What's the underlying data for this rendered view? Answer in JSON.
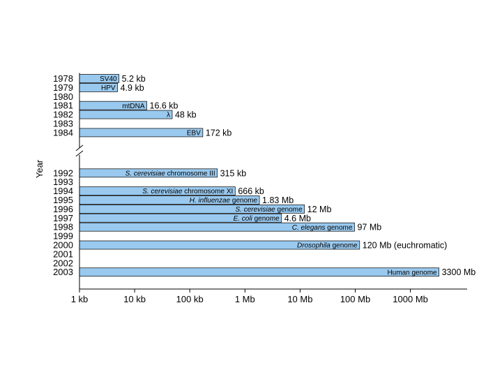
{
  "chart_data": {
    "type": "bar",
    "orientation": "horizontal",
    "scale": "log",
    "title": "",
    "ylabel": "Year",
    "xlabel": "",
    "bar_color": "#99c9ef",
    "x_ticks": [
      {
        "label": "1 kb",
        "value": 1
      },
      {
        "label": "10 kb",
        "value": 10
      },
      {
        "label": "100 kb",
        "value": 100
      },
      {
        "label": "1 Mb",
        "value": 1000
      },
      {
        "label": "10 Mb",
        "value": 10000
      },
      {
        "label": "100 Mb",
        "value": 100000
      },
      {
        "label": "1000 Mb",
        "value": 1000000
      }
    ],
    "axis_break_after": "1984",
    "rows": [
      {
        "year": "1978",
        "name": "SV40",
        "value_kb": 5.2,
        "value_label": "5.2 kb"
      },
      {
        "year": "1979",
        "name": "HPV",
        "value_kb": 4.9,
        "value_label": "4.9 kb"
      },
      {
        "year": "1980"
      },
      {
        "year": "1981",
        "name": "mtDNA",
        "value_kb": 16.6,
        "value_label": "16.6 kb"
      },
      {
        "year": "1982",
        "name": "λ",
        "value_kb": 48,
        "value_label": "48 kb"
      },
      {
        "year": "1983"
      },
      {
        "year": "1984",
        "name": "EBV",
        "value_kb": 172,
        "value_label": "172 kb"
      },
      {
        "year": "1992",
        "name_italic": "S. cerevisiae",
        "name_rest": " chromosome III",
        "value_kb": 315,
        "value_label": "315 kb"
      },
      {
        "year": "1993"
      },
      {
        "year": "1994",
        "name_italic": "S. cerevisiae",
        "name_rest": " chromosome XI",
        "value_kb": 666,
        "value_label": "666 kb"
      },
      {
        "year": "1995",
        "name_italic": "H. influenzae",
        "name_rest": " genome",
        "value_kb": 1830,
        "value_label": "1.83 Mb"
      },
      {
        "year": "1996",
        "name_italic": "S. cerevisiae",
        "name_rest": " genome",
        "value_kb": 12000,
        "value_label": "12 Mb"
      },
      {
        "year": "1997",
        "name_italic": "E. coli",
        "name_rest": " genome",
        "value_kb": 4600,
        "value_label": "4.6 Mb"
      },
      {
        "year": "1998",
        "name_italic": "C. elegans",
        "name_rest": " genome",
        "value_kb": 97000,
        "value_label": "97 Mb"
      },
      {
        "year": "1999"
      },
      {
        "year": "2000",
        "name_italic": "Drosophila",
        "name_rest": " genome",
        "value_kb": 120000,
        "value_label": "120 Mb (euchromatic)"
      },
      {
        "year": "2001"
      },
      {
        "year": "2002"
      },
      {
        "year": "2003",
        "name": "Human genome",
        "value_kb": 3300000,
        "value_label": "3300 Mb"
      }
    ]
  }
}
